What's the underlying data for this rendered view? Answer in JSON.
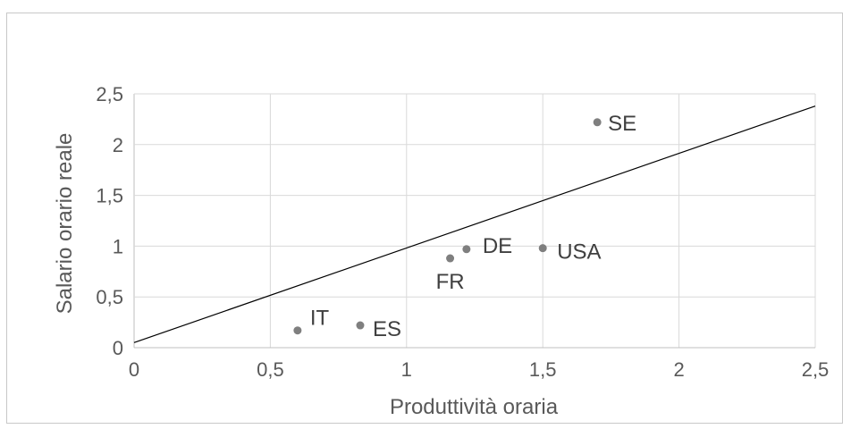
{
  "chart_data": {
    "type": "scatter",
    "xlabel": "Produttività oraria",
    "ylabel": "Salario orario reale",
    "xlim": [
      0,
      2.5
    ],
    "ylim": [
      0,
      2.5
    ],
    "x_ticks": [
      "0",
      "0,5",
      "1",
      "1,5",
      "2",
      "2,5"
    ],
    "y_ticks": [
      "0",
      "0,5",
      "1",
      "1,5",
      "2",
      "2,5"
    ],
    "grid": true,
    "points": [
      {
        "label": "IT",
        "x": 0.6,
        "y": 0.17
      },
      {
        "label": "ES",
        "x": 0.83,
        "y": 0.22
      },
      {
        "label": "FR",
        "x": 1.16,
        "y": 0.88
      },
      {
        "label": "DE",
        "x": 1.22,
        "y": 0.97
      },
      {
        "label": "USA",
        "x": 1.5,
        "y": 0.98
      },
      {
        "label": "SE",
        "x": 1.7,
        "y": 2.22
      }
    ],
    "reference_line": {
      "x": [
        0,
        2.5
      ],
      "y": [
        0.05,
        2.38
      ]
    },
    "colors": {
      "point": "#7f7f7f",
      "line": "#000000",
      "grid": "#d9d9d9"
    }
  }
}
